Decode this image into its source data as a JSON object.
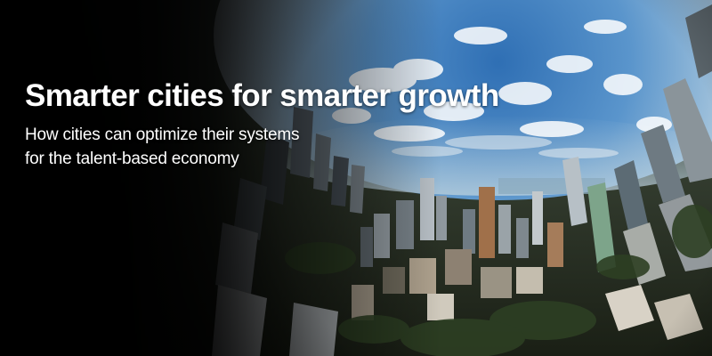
{
  "banner": {
    "headline": "Smarter cities for smarter growth",
    "subline_1": "How cities can optimize their systems",
    "subline_2": "for the talent-based economy"
  },
  "colors": {
    "text": "#ffffff",
    "sky_top": "#3d7fc0",
    "sky_bottom": "#cfe0ec",
    "city_dark": "#1e2418",
    "background": "#000000"
  }
}
